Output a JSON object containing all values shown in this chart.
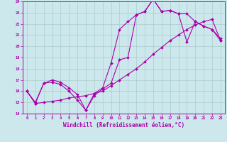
{
  "xlabel": "Windchill (Refroidissement éolien,°C)",
  "xlim": [
    -0.5,
    23.5
  ],
  "ylim": [
    14,
    24
  ],
  "xticks": [
    0,
    1,
    2,
    3,
    4,
    5,
    6,
    7,
    8,
    9,
    10,
    11,
    12,
    13,
    14,
    15,
    16,
    17,
    18,
    19,
    20,
    21,
    22,
    23
  ],
  "yticks": [
    14,
    15,
    16,
    17,
    18,
    19,
    20,
    21,
    22,
    23,
    24
  ],
  "line_color": "#aa00aa",
  "bg_color": "#cce8ec",
  "grid_color": "#aacccc",
  "line1_x": [
    0,
    1,
    2,
    3,
    4,
    5,
    6,
    7,
    8,
    9,
    10,
    11,
    12,
    13,
    14,
    15,
    16,
    17,
    18,
    19,
    20,
    21,
    22,
    23
  ],
  "line1_y": [
    16.0,
    14.9,
    16.7,
    16.8,
    16.6,
    16.0,
    15.2,
    14.3,
    15.6,
    16.2,
    16.7,
    18.8,
    19.0,
    22.8,
    23.1,
    24.2,
    23.1,
    23.2,
    22.9,
    20.4,
    22.2,
    21.8,
    21.5,
    20.7
  ],
  "line2_x": [
    0,
    1,
    2,
    3,
    4,
    5,
    6,
    7,
    8,
    9,
    10,
    11,
    12,
    13,
    14,
    15,
    16,
    17,
    18,
    19,
    20,
    21,
    22,
    23
  ],
  "line2_y": [
    16.0,
    14.9,
    15.0,
    15.1,
    15.2,
    15.4,
    15.5,
    15.6,
    15.8,
    16.0,
    16.5,
    17.0,
    17.5,
    18.0,
    18.6,
    19.3,
    19.9,
    20.5,
    21.0,
    21.5,
    21.9,
    22.2,
    22.4,
    20.5
  ],
  "line3_x": [
    0,
    1,
    2,
    3,
    4,
    5,
    6,
    7,
    8,
    9,
    10,
    11,
    12,
    13,
    14,
    15,
    16,
    17,
    18,
    19,
    20,
    21,
    22,
    23
  ],
  "line3_y": [
    16.0,
    15.0,
    16.7,
    17.0,
    16.8,
    16.3,
    15.7,
    14.3,
    15.8,
    16.3,
    18.5,
    21.5,
    22.2,
    22.8,
    23.1,
    24.2,
    23.1,
    23.2,
    22.9,
    22.9,
    22.2,
    21.8,
    21.5,
    20.5
  ],
  "marker": "D",
  "markersize": 2.0,
  "linewidth": 0.8,
  "tick_fontsize": 4.0,
  "xlabel_fontsize": 5.5
}
